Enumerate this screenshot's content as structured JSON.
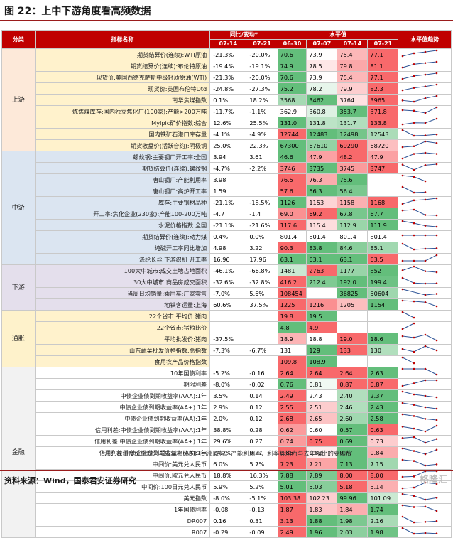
{
  "title": "图 22：上中下游角度看高频数据",
  "headers": {
    "category": "分类",
    "indicator": "指标名称",
    "change": "同比/变动*",
    "level": "水平值",
    "trend": "水平值趋势",
    "dates_change": [
      "07-14",
      "07-21"
    ],
    "dates_level": [
      "06-30",
      "07-07",
      "07-14",
      "07-21"
    ]
  },
  "rows": [
    {
      "cat": "上游",
      "name": "期货结算价(连续):WTI原油",
      "c1": "-21.3%",
      "c2": "-20.0%",
      "lv": [
        "70.6",
        "73.9",
        "75.4",
        "77.1"
      ]
    },
    {
      "name": "期货结算价(连续):布伦特原油",
      "c1": "-19.4%",
      "c2": "-19.1%",
      "lv": [
        "74.9",
        "78.5",
        "79.8",
        "81.1"
      ]
    },
    {
      "name": "现货价:美国西德克萨斯中级轻质原油(WTI)",
      "c1": "-21.3%",
      "c2": "-20.0%",
      "lv": [
        "70.6",
        "73.9",
        "75.4",
        "77.1"
      ]
    },
    {
      "name": "现货价:英国布伦特Dtd",
      "c1": "-24.8%",
      "c2": "-27.3%",
      "lv": [
        "75.2",
        "78.2",
        "79.9",
        "82.3"
      ]
    },
    {
      "name": "南华焦煤指数",
      "c1": "0.1%",
      "c2": "18.2%",
      "lv": [
        "3568",
        "3462",
        "3764",
        "3965"
      ]
    },
    {
      "name": "炼焦煤库存:国内独立焦化厂(100家):产能>200万吨",
      "c1": "-11.7%",
      "c2": "-1.1%",
      "lv": [
        "362.9",
        "360.8",
        "353.7",
        "371.8"
      ]
    },
    {
      "name": "Mylpic矿价指数:综合",
      "c1": "12.6%",
      "c2": "25.5%",
      "lv": [
        "131.0",
        "131.8",
        "131.7",
        "133.8"
      ]
    },
    {
      "name": "国内铁矿石港口库存量",
      "c1": "-4.1%",
      "c2": "-4.9%",
      "lv": [
        "12744",
        "12483",
        "12498",
        "12543"
      ]
    },
    {
      "name": "期货收盘价(活跃合约):阴极铜",
      "c1": "25.0%",
      "c2": "22.3%",
      "lv": [
        "67300",
        "67610",
        "69290",
        "68720"
      ]
    },
    {
      "cat": "中游",
      "name": "螺纹钢:主要钢厂开工率:全国",
      "c1": "3.94",
      "c2": "3.61",
      "lv": [
        "46.6",
        "47.9",
        "48.2",
        "47.9"
      ]
    },
    {
      "name": "期货结算价(连续):螺纹钢",
      "c1": "-4.7%",
      "c2": "-2.2%",
      "lv": [
        "3746",
        "3735",
        "3745",
        "3747"
      ]
    },
    {
      "name": "唐山钢厂:产能利用率",
      "c1": "3.98",
      "c2": "",
      "lv": [
        "76.5",
        "76.3",
        "75.6",
        ""
      ]
    },
    {
      "name": "唐山钢厂:高炉开工率",
      "c1": "1.59",
      "c2": "",
      "lv": [
        "57.6",
        "56.3",
        "56.4",
        ""
      ]
    },
    {
      "name": "库存:主要钢材品种",
      "c1": "-21.1%",
      "c2": "-18.5%",
      "lv": [
        "1126",
        "1153",
        "1158",
        "1168"
      ]
    },
    {
      "name": "开工率:焦化企业(230家):产能100-200万吨",
      "c1": "-4.7",
      "c2": "-1.4",
      "lv": [
        "69.0",
        "69.2",
        "67.8",
        "67.7"
      ]
    },
    {
      "name": "水泥价格指数:全国",
      "c1": "-21.1%",
      "c2": "-21.6%",
      "lv": [
        "117.6",
        "115.4",
        "112.9",
        "111.9"
      ]
    },
    {
      "name": "期货结算价(连续):动力煤",
      "c1": "0.4%",
      "c2": "0.0%",
      "lv": [
        "801.4",
        "801.4",
        "801.4",
        "801.4"
      ]
    },
    {
      "name": "纯碱开工率同比增加",
      "c1": "4.98",
      "c2": "3.22",
      "lv": [
        "90.3",
        "83.8",
        "84.6",
        "85.1"
      ]
    },
    {
      "name": "涤纶长丝 下游织机 开工率",
      "c1": "16.96",
      "c2": "17.96",
      "lv": [
        "63.1",
        "63.1",
        "63.1",
        "63.5"
      ]
    },
    {
      "cat": "下游",
      "name": "100大中城市:成交土地占地面积",
      "c1": "-46.1%",
      "c2": "-66.8%",
      "lv": [
        "1481",
        "2763",
        "1177",
        "852"
      ]
    },
    {
      "name": "30大中城市:商品房成交面积",
      "c1": "-32.6%",
      "c2": "-32.8%",
      "lv": [
        "416.2",
        "212.4",
        "192.0",
        "199.4"
      ]
    },
    {
      "name": "当周日均销量:乘用车:厂家零售",
      "c1": "-7.0%",
      "c2": "5.6%",
      "lv": [
        "108454",
        "",
        "36825",
        "50604"
      ]
    },
    {
      "name": "地铁客运量:上海",
      "c1": "60.6%",
      "c2": "37.5%",
      "lv": [
        "1225",
        "1216",
        "1205",
        "1154"
      ]
    },
    {
      "cat": "通胀",
      "name": "22个省市:平均价:猪肉",
      "c1": "",
      "c2": "",
      "lv": [
        "19.8",
        "19.5",
        "",
        ""
      ]
    },
    {
      "name": "22个省市:猪粮比价",
      "c1": "",
      "c2": "",
      "lv": [
        "4.8",
        "4.9",
        "",
        ""
      ]
    },
    {
      "name": "平均批发价:猪肉",
      "c1": "-37.5%",
      "c2": "",
      "lv": [
        "18.9",
        "18.8",
        "19.0",
        "18.6"
      ]
    },
    {
      "name": "山东蔬菜批发价格指数:总指数",
      "c1": "-7.3%",
      "c2": "-6.7%",
      "lv": [
        "131",
        "129",
        "133",
        "130"
      ]
    },
    {
      "name": "食用农产品价格指数",
      "c1": "",
      "c2": "",
      "lv": [
        "109.8",
        "108.9",
        "",
        ""
      ]
    },
    {
      "cat": "金融",
      "name": "10年国债利率",
      "c1": "-5.2%",
      "c2": "-0.16",
      "lv": [
        "2.64",
        "2.64",
        "2.64",
        "2.63"
      ]
    },
    {
      "name": "期限利差",
      "c1": "-8.0%",
      "c2": "-0.02",
      "lv": [
        "0.76",
        "0.81",
        "0.87",
        "0.87"
      ]
    },
    {
      "name": "中债企业债到期收益率(AAA):1年",
      "c1": "3.5%",
      "c2": "0.14",
      "lv": [
        "2.49",
        "2.43",
        "2.40",
        "2.37"
      ]
    },
    {
      "name": "中债企业债到期收益率(AA+):1年",
      "c1": "2.9%",
      "c2": "0.12",
      "lv": [
        "2.55",
        "2.51",
        "2.46",
        "2.43"
      ]
    },
    {
      "name": "中债企业债到期收益率(AA):1年",
      "c1": "2.0%",
      "c2": "0.12",
      "lv": [
        "2.68",
        "2.65",
        "2.60",
        "2.58"
      ]
    },
    {
      "name": "信用利差:中债企业债到期收益率(AAA):1年",
      "c1": "38.8%",
      "c2": "0.28",
      "lv": [
        "0.62",
        "0.60",
        "0.57",
        "0.63"
      ]
    },
    {
      "name": "信用利差:中债企业债到期收益率(AA+):1年",
      "c1": "29.6%",
      "c2": "0.27",
      "lv": [
        "0.74",
        "0.75",
        "0.69",
        "0.73"
      ]
    },
    {
      "name": "信用利差:中债企业债到期收益率(AA):1年",
      "c1": "24.7%",
      "c2": "0.27",
      "lv": [
        "0.86",
        "0.82",
        "0.77",
        "0.84"
      ]
    },
    {
      "name": "中间价:美元兑人民币",
      "c1": "6.0%",
      "c2": "5.7%",
      "lv": [
        "7.23",
        "7.21",
        "7.13",
        "7.15"
      ]
    },
    {
      "name": "中间价:欧元兑人民币",
      "c1": "18.8%",
      "c2": "16.3%",
      "lv": [
        "7.88",
        "7.89",
        "8.00",
        "8.00"
      ]
    },
    {
      "name": "中间价:100日元兑人民币",
      "c1": "5.9%",
      "c2": "5.2%",
      "lv": [
        "5.01",
        "5.03",
        "5.18",
        "5.14"
      ]
    },
    {
      "name": "美元指数",
      "c1": "-8.0%",
      "c2": "-5.1%",
      "lv": [
        "103.38",
        "102.23",
        "99.96",
        "101.09"
      ]
    },
    {
      "name": "1年国债利率",
      "c1": "-0.08",
      "c2": "-0.13",
      "lv": [
        "1.87",
        "1.83",
        "1.84",
        "1.74"
      ]
    },
    {
      "name": "DR007",
      "c1": "0.16",
      "c2": "0.31",
      "lv": [
        "3.13",
        "1.88",
        "1.98",
        "2.16"
      ]
    },
    {
      "name": "R007",
      "c1": "-0.29",
      "c2": "-0.09",
      "lv": [
        "2.49",
        "1.96",
        "2.03",
        "1.98"
      ]
    }
  ],
  "note": "*注：数量及价格均为与去年相比的同比涨跌幅。产能利用率、利率等均为与去年相比的变动值",
  "source": "资料来源：Wind，国泰君安证券研究",
  "watermark": "格隆汇"
}
